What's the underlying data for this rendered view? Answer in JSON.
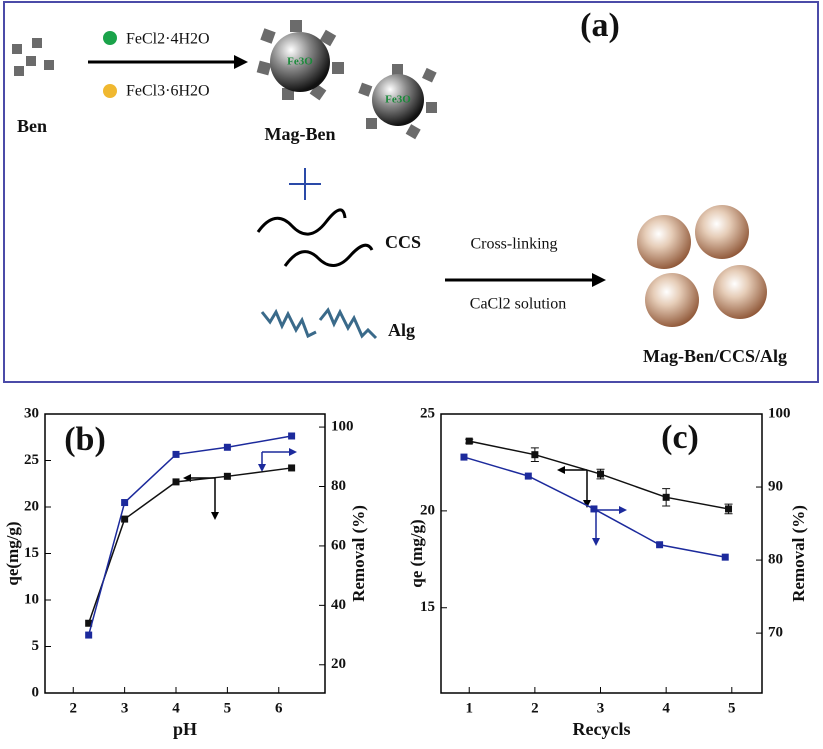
{
  "schematic": {
    "label": "(a)",
    "reagent_1": "FeCl2·4H2O",
    "reagent_2": "FeCl3·6H2O",
    "ben": "Ben",
    "core_1": "Fe3O",
    "core_2": "Fe3O",
    "mag_ben": "Mag-Ben",
    "ccs": "CCS",
    "alg": "Alg",
    "step_1": "Cross-linking",
    "step_2": "CaCl2 solution",
    "product": "Mag-Ben/CCS/Alg"
  },
  "chart_data": [
    {
      "type": "line",
      "panel_label": "(b)",
      "xlabel": "pH",
      "ylabel": "qe(mg/g)",
      "y2label": "Removal (%)",
      "xlim": [
        1.45,
        6.9
      ],
      "xticks": [
        2,
        3,
        4,
        5,
        6
      ],
      "ylim": [
        0,
        30
      ],
      "yticks": [
        0,
        5,
        10,
        15,
        20,
        25,
        30
      ],
      "y2lim": [
        10.5,
        104.4
      ],
      "y2ticks": [
        20,
        40,
        60,
        80,
        100
      ],
      "series": [
        {
          "color": "#111111",
          "x": [
            2.3,
            3,
            4,
            5,
            6.25
          ],
          "values": [
            7.5,
            18.7,
            22.7,
            23.3,
            24.2
          ]
        },
        {
          "color": "#1c2a9c",
          "axis": "y2",
          "x": [
            2.3,
            3,
            4,
            5,
            6.25
          ],
          "values": [
            30,
            74.6,
            90.8,
            93.2,
            97
          ]
        }
      ]
    },
    {
      "type": "line",
      "panel_label": "(c)",
      "xlabel": "Recycls",
      "ylabel": "qe (mg/g)",
      "y2label": "Removal (%)",
      "xlim": [
        0.57,
        5.46
      ],
      "xticks": [
        1,
        2,
        3,
        4,
        5
      ],
      "ylim": [
        10.6,
        25
      ],
      "yticks": [
        15,
        20,
        25
      ],
      "y2lim": [
        61.8,
        100
      ],
      "y2ticks": [
        70,
        80,
        90,
        100
      ],
      "series": [
        {
          "color": "#111111",
          "x": [
            1,
            2,
            3,
            4,
            4.95
          ],
          "values": [
            23.6,
            22.9,
            21.9,
            20.7,
            20.1
          ],
          "errors": [
            0.1,
            0.35,
            0.25,
            0.45,
            0.25
          ]
        },
        {
          "color": "#1c2a9c",
          "axis": "y2",
          "x": [
            0.92,
            1.9,
            2.9,
            3.9,
            4.9
          ],
          "values": [
            94.1,
            91.5,
            87.0,
            82.1,
            80.4
          ]
        }
      ]
    }
  ]
}
